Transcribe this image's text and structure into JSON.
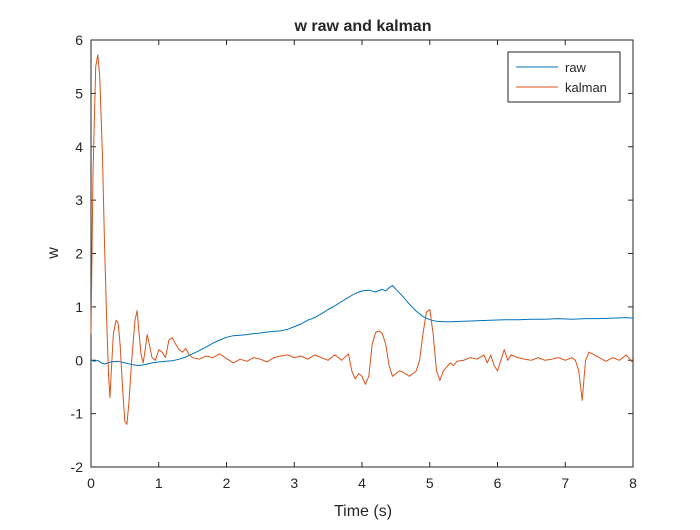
{
  "chart_data": {
    "type": "line",
    "title": "w raw and kalman",
    "xlabel": "Time (s)",
    "ylabel": "w",
    "xlim": [
      0,
      8
    ],
    "ylim": [
      -2,
      6
    ],
    "xticks": [
      0,
      1,
      2,
      3,
      4,
      5,
      6,
      7,
      8
    ],
    "yticks": [
      -2,
      -1,
      0,
      1,
      2,
      3,
      4,
      5,
      6
    ],
    "grid": false,
    "legend_position": "top-right",
    "series": [
      {
        "name": "raw",
        "color": "#0072BD",
        "points": [
          [
            0,
            0.0
          ],
          [
            0.05,
            -0.02
          ],
          [
            0.1,
            0.0
          ],
          [
            0.15,
            -0.05
          ],
          [
            0.2,
            -0.07
          ],
          [
            0.3,
            -0.03
          ],
          [
            0.4,
            -0.02
          ],
          [
            0.5,
            -0.05
          ],
          [
            0.6,
            -0.08
          ],
          [
            0.7,
            -0.1
          ],
          [
            0.8,
            -0.08
          ],
          [
            0.9,
            -0.05
          ],
          [
            1.0,
            -0.03
          ],
          [
            1.1,
            -0.02
          ],
          [
            1.2,
            -0.01
          ],
          [
            1.3,
            0.02
          ],
          [
            1.4,
            0.06
          ],
          [
            1.5,
            0.12
          ],
          [
            1.6,
            0.18
          ],
          [
            1.7,
            0.25
          ],
          [
            1.8,
            0.32
          ],
          [
            1.9,
            0.38
          ],
          [
            2.0,
            0.43
          ],
          [
            2.1,
            0.46
          ],
          [
            2.2,
            0.47
          ],
          [
            2.3,
            0.48
          ],
          [
            2.4,
            0.5
          ],
          [
            2.5,
            0.51
          ],
          [
            2.6,
            0.53
          ],
          [
            2.7,
            0.54
          ],
          [
            2.8,
            0.55
          ],
          [
            2.9,
            0.58
          ],
          [
            3.0,
            0.63
          ],
          [
            3.1,
            0.68
          ],
          [
            3.2,
            0.75
          ],
          [
            3.3,
            0.8
          ],
          [
            3.4,
            0.87
          ],
          [
            3.5,
            0.95
          ],
          [
            3.6,
            1.02
          ],
          [
            3.7,
            1.1
          ],
          [
            3.8,
            1.18
          ],
          [
            3.9,
            1.25
          ],
          [
            4.0,
            1.3
          ],
          [
            4.1,
            1.31
          ],
          [
            4.2,
            1.28
          ],
          [
            4.3,
            1.33
          ],
          [
            4.35,
            1.3
          ],
          [
            4.4,
            1.36
          ],
          [
            4.45,
            1.4
          ],
          [
            4.5,
            1.33
          ],
          [
            4.6,
            1.2
          ],
          [
            4.7,
            1.05
          ],
          [
            4.8,
            0.92
          ],
          [
            4.9,
            0.82
          ],
          [
            5.0,
            0.76
          ],
          [
            5.1,
            0.73
          ],
          [
            5.2,
            0.72
          ],
          [
            5.3,
            0.72
          ],
          [
            5.5,
            0.73
          ],
          [
            5.7,
            0.74
          ],
          [
            5.9,
            0.75
          ],
          [
            6.1,
            0.76
          ],
          [
            6.3,
            0.76
          ],
          [
            6.5,
            0.77
          ],
          [
            6.7,
            0.77
          ],
          [
            6.9,
            0.78
          ],
          [
            7.1,
            0.77
          ],
          [
            7.3,
            0.78
          ],
          [
            7.5,
            0.78
          ],
          [
            7.7,
            0.79
          ],
          [
            7.9,
            0.8
          ],
          [
            8.0,
            0.79
          ]
        ]
      },
      {
        "name": "kalman",
        "color": "#D95319",
        "points": [
          [
            0,
            0.5
          ],
          [
            0.03,
            3.5
          ],
          [
            0.07,
            5.5
          ],
          [
            0.1,
            5.72
          ],
          [
            0.13,
            5.3
          ],
          [
            0.17,
            3.8
          ],
          [
            0.2,
            2.2
          ],
          [
            0.23,
            0.8
          ],
          [
            0.26,
            -0.3
          ],
          [
            0.28,
            -0.7
          ],
          [
            0.3,
            -0.2
          ],
          [
            0.33,
            0.5
          ],
          [
            0.37,
            0.75
          ],
          [
            0.4,
            0.7
          ],
          [
            0.43,
            0.3
          ],
          [
            0.47,
            -0.6
          ],
          [
            0.5,
            -1.15
          ],
          [
            0.53,
            -1.2
          ],
          [
            0.56,
            -0.8
          ],
          [
            0.6,
            0.0
          ],
          [
            0.65,
            0.75
          ],
          [
            0.68,
            0.93
          ],
          [
            0.71,
            0.5
          ],
          [
            0.74,
            0.1
          ],
          [
            0.77,
            -0.05
          ],
          [
            0.8,
            0.2
          ],
          [
            0.83,
            0.48
          ],
          [
            0.86,
            0.3
          ],
          [
            0.9,
            0.05
          ],
          [
            0.95,
            0.0
          ],
          [
            1.0,
            0.2
          ],
          [
            1.05,
            0.15
          ],
          [
            1.1,
            0.05
          ],
          [
            1.15,
            0.38
          ],
          [
            1.2,
            0.42
          ],
          [
            1.25,
            0.3
          ],
          [
            1.3,
            0.2
          ],
          [
            1.35,
            0.15
          ],
          [
            1.4,
            0.22
          ],
          [
            1.45,
            0.1
          ],
          [
            1.5,
            0.05
          ],
          [
            1.6,
            0.02
          ],
          [
            1.7,
            0.08
          ],
          [
            1.8,
            0.05
          ],
          [
            1.9,
            0.12
          ],
          [
            2.0,
            0.03
          ],
          [
            2.1,
            -0.05
          ],
          [
            2.2,
            0.02
          ],
          [
            2.3,
            -0.02
          ],
          [
            2.4,
            0.05
          ],
          [
            2.5,
            0.02
          ],
          [
            2.6,
            -0.03
          ],
          [
            2.7,
            0.05
          ],
          [
            2.8,
            0.08
          ],
          [
            2.9,
            0.1
          ],
          [
            3.0,
            0.05
          ],
          [
            3.1,
            0.08
          ],
          [
            3.2,
            0.02
          ],
          [
            3.3,
            0.1
          ],
          [
            3.4,
            0.05
          ],
          [
            3.5,
            0.0
          ],
          [
            3.6,
            0.1
          ],
          [
            3.7,
            0.0
          ],
          [
            3.8,
            0.12
          ],
          [
            3.85,
            -0.2
          ],
          [
            3.9,
            -0.35
          ],
          [
            3.95,
            -0.25
          ],
          [
            4.0,
            -0.3
          ],
          [
            4.05,
            -0.45
          ],
          [
            4.1,
            -0.3
          ],
          [
            4.15,
            0.3
          ],
          [
            4.2,
            0.52
          ],
          [
            4.25,
            0.55
          ],
          [
            4.3,
            0.5
          ],
          [
            4.35,
            0.3
          ],
          [
            4.4,
            -0.1
          ],
          [
            4.45,
            -0.3
          ],
          [
            4.5,
            -0.25
          ],
          [
            4.55,
            -0.2
          ],
          [
            4.6,
            -0.22
          ],
          [
            4.7,
            -0.3
          ],
          [
            4.75,
            -0.25
          ],
          [
            4.8,
            -0.2
          ],
          [
            4.85,
            0.0
          ],
          [
            4.9,
            0.5
          ],
          [
            4.95,
            0.9
          ],
          [
            5.0,
            0.95
          ],
          [
            5.05,
            0.5
          ],
          [
            5.1,
            -0.2
          ],
          [
            5.15,
            -0.38
          ],
          [
            5.2,
            -0.2
          ],
          [
            5.3,
            -0.05
          ],
          [
            5.35,
            -0.1
          ],
          [
            5.4,
            -0.02
          ],
          [
            5.5,
            0.0
          ],
          [
            5.6,
            0.05
          ],
          [
            5.7,
            0.02
          ],
          [
            5.8,
            0.1
          ],
          [
            5.85,
            -0.05
          ],
          [
            5.9,
            0.1
          ],
          [
            5.95,
            -0.1
          ],
          [
            6.0,
            -0.2
          ],
          [
            6.05,
            0.0
          ],
          [
            6.1,
            0.2
          ],
          [
            6.15,
            0.0
          ],
          [
            6.2,
            0.1
          ],
          [
            6.3,
            0.05
          ],
          [
            6.4,
            0.02
          ],
          [
            6.5,
            0.0
          ],
          [
            6.6,
            0.05
          ],
          [
            6.7,
            0.0
          ],
          [
            6.8,
            0.02
          ],
          [
            6.9,
            0.05
          ],
          [
            7.0,
            0.0
          ],
          [
            7.1,
            0.05
          ],
          [
            7.15,
            0.0
          ],
          [
            7.2,
            -0.2
          ],
          [
            7.25,
            -0.75
          ],
          [
            7.28,
            -0.3
          ],
          [
            7.3,
            0.0
          ],
          [
            7.35,
            0.15
          ],
          [
            7.4,
            0.12
          ],
          [
            7.5,
            0.05
          ],
          [
            7.6,
            -0.02
          ],
          [
            7.7,
            0.05
          ],
          [
            7.8,
            0.0
          ],
          [
            7.9,
            0.1
          ],
          [
            8.0,
            -0.05
          ]
        ]
      }
    ]
  }
}
